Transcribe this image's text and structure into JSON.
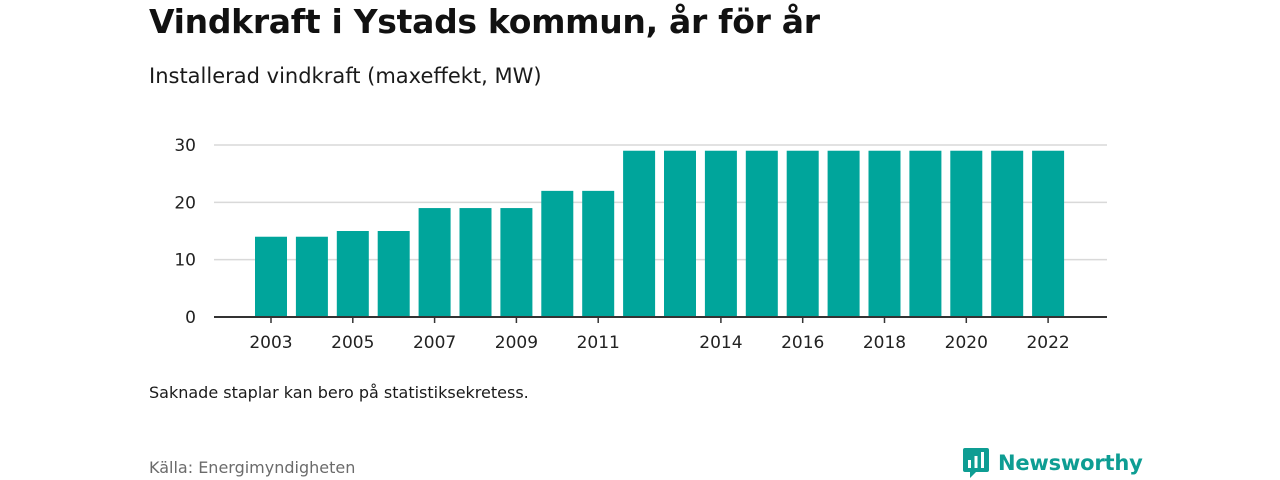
{
  "header": {
    "title": "Vindkraft i Ystads kommun, år för år",
    "subtitle": "Installerad vindkraft (maxeffekt, MW)"
  },
  "footer": {
    "note": "Saknade staplar kan bero på statistiksekretess.",
    "source": "Källa: Energimyndigheten",
    "brand": "Newsworthy",
    "logo_icon": "newsworthy-logo-icon"
  },
  "colors": {
    "bar": "#00a59b",
    "grid": "#d9d9d9",
    "axis": "#333333",
    "brand": "#0e9d93"
  },
  "chart_data": {
    "type": "bar",
    "title": "Vindkraft i Ystads kommun, år för år",
    "subtitle": "Installerad vindkraft (maxeffekt, MW)",
    "xlabel": "",
    "ylabel": "",
    "categories": [
      "2003",
      "2004",
      "2005",
      "2006",
      "2007",
      "2008",
      "2009",
      "2010",
      "2011",
      "2012",
      "2013",
      "2014",
      "2015",
      "2016",
      "2017",
      "2018",
      "2019",
      "2020",
      "2021",
      "2022"
    ],
    "values": [
      14,
      14,
      15,
      15,
      19,
      19,
      19,
      22,
      22,
      29,
      29,
      29,
      29,
      29,
      29,
      29,
      29,
      29,
      29,
      29
    ],
    "x_tick_labels": [
      "2003",
      "2005",
      "2007",
      "2009",
      "2011",
      "2014",
      "2016",
      "2018",
      "2020",
      "2022"
    ],
    "y_ticks": [
      0,
      10,
      20,
      30
    ],
    "ylim": [
      0,
      30
    ],
    "grid": true,
    "legend": "none"
  }
}
